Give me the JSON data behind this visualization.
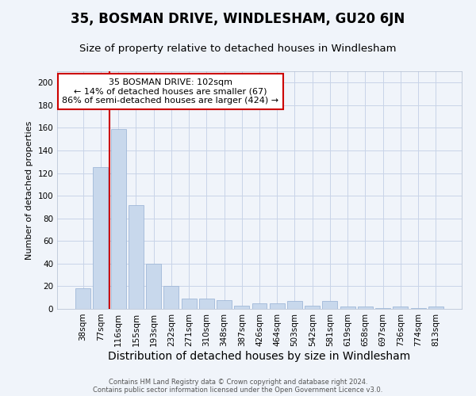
{
  "title": "35, BOSMAN DRIVE, WINDLESHAM, GU20 6JN",
  "subtitle": "Size of property relative to detached houses in Windlesham",
  "xlabel": "Distribution of detached houses by size in Windlesham",
  "ylabel": "Number of detached properties",
  "categories": [
    "38sqm",
    "77sqm",
    "116sqm",
    "155sqm",
    "193sqm",
    "232sqm",
    "271sqm",
    "310sqm",
    "348sqm",
    "387sqm",
    "426sqm",
    "464sqm",
    "503sqm",
    "542sqm",
    "581sqm",
    "619sqm",
    "658sqm",
    "697sqm",
    "736sqm",
    "774sqm",
    "813sqm"
  ],
  "values": [
    18,
    125,
    159,
    92,
    40,
    20,
    9,
    9,
    8,
    3,
    5,
    5,
    7,
    3,
    7,
    2,
    2,
    1,
    2,
    1,
    2
  ],
  "bar_color": "#c8d8ec",
  "bar_edge_color": "#a0b8d8",
  "ylim": [
    0,
    210
  ],
  "yticks": [
    0,
    20,
    40,
    60,
    80,
    100,
    120,
    140,
    160,
    180,
    200
  ],
  "red_line_x": 1.5,
  "annotation_title": "35 BOSMAN DRIVE: 102sqm",
  "annotation_line1": "← 14% of detached houses are smaller (67)",
  "annotation_line2": "86% of semi-detached houses are larger (424) →",
  "footer1": "Contains HM Land Registry data © Crown copyright and database right 2024.",
  "footer2": "Contains public sector information licensed under the Open Government Licence v3.0.",
  "bg_color": "#f0f4fa",
  "grid_color": "#c8d4e8",
  "title_fontsize": 12,
  "subtitle_fontsize": 9.5,
  "xlabel_fontsize": 10,
  "ylabel_fontsize": 8,
  "tick_fontsize": 7.5,
  "annot_fontsize": 8,
  "footer_fontsize": 6,
  "annotation_box_color": "#cc0000"
}
